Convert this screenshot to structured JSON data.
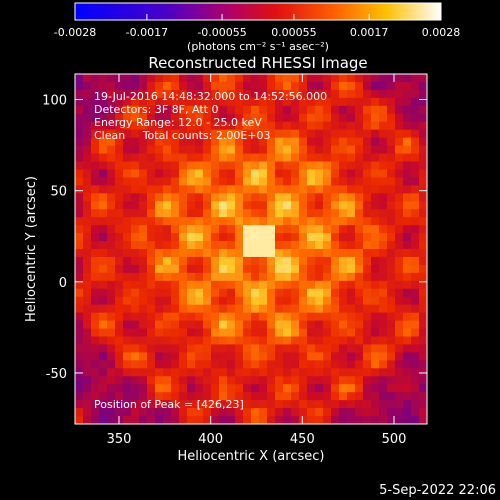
{
  "chart_data": {
    "type": "heatmap",
    "title": "Reconstructed RHESSI Image",
    "xlabel": "Heliocentric X (arcsec)",
    "ylabel": "Heliocentric Y (arcsec)",
    "xlim": [
      326,
      518
    ],
    "ylim": [
      -78,
      114
    ],
    "xticks": [
      350,
      400,
      450,
      500
    ],
    "yticks": [
      -50,
      0,
      50,
      100
    ],
    "colorbar": {
      "ticks": [
        "-0.0028",
        "-0.0017",
        "-0.00055",
        "0.00055",
        "0.0017",
        "0.0028"
      ],
      "unit_label": "(photons cm⁻² s⁻¹ asec⁻²)",
      "range": [
        -0.0028,
        0.0028
      ]
    },
    "peak": {
      "x": 426,
      "y": 23
    },
    "colors": {
      "background": "#000000",
      "text": "#ffffff"
    }
  },
  "annotations": {
    "time_range": "19-Jul-2016 14:48:32.000 to 14:52:56.000",
    "detectors": "Detectors: 3F 8F, Att 0",
    "energy_range": "Energy Range: 12.0 - 25.0 keV",
    "method_counts": "Clean     Total counts: 2.00E+03",
    "peak_position": "Position of Peak = [426,23]"
  },
  "footer": {
    "date": "5-Sep-2022 22:06"
  }
}
